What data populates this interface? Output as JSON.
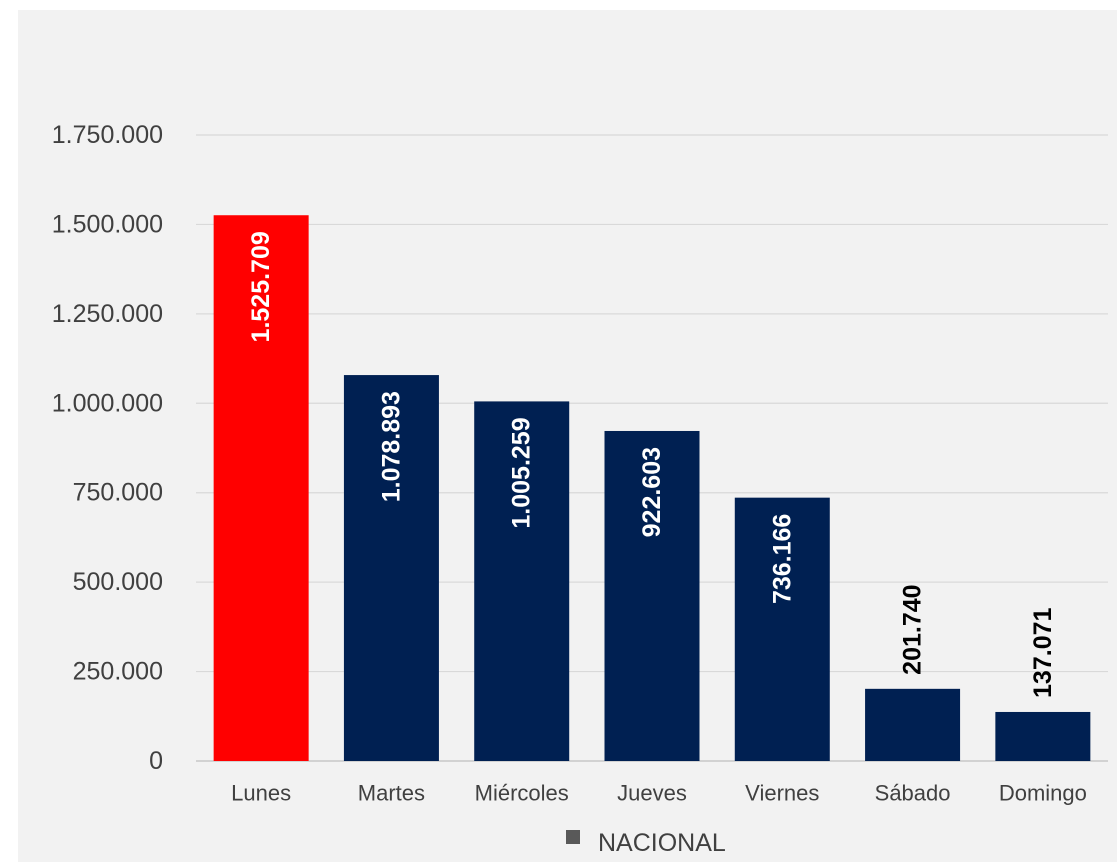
{
  "chart_data": {
    "type": "bar",
    "categories": [
      "Lunes",
      "Martes",
      "Miércoles",
      "Jueves",
      "Viernes",
      "Sábado",
      "Domingo"
    ],
    "values": [
      1525709,
      1078893,
      1005259,
      922603,
      736166,
      201740,
      137071
    ],
    "data_labels": [
      "1.525.709",
      "1.078.893",
      "1.005.259",
      "922.603",
      "736.166",
      "201.740",
      "137.071"
    ],
    "series": [
      {
        "name": "NACIONAL",
        "values": [
          1525709,
          1078893,
          1005259,
          922603,
          736166,
          201740,
          137071
        ]
      }
    ],
    "ylim": [
      0,
      1750000
    ],
    "y_ticks": [
      0,
      250000,
      500000,
      750000,
      1000000,
      1250000,
      1500000,
      1750000
    ],
    "y_tick_labels": [
      "0",
      "250.000",
      "500.000",
      "750.000",
      "1.000.000",
      "1.250.000",
      "1.500.000",
      "1.750.000"
    ],
    "bar_colors": [
      "#ff0000",
      "#002052",
      "#002052",
      "#002052",
      "#002052",
      "#002052",
      "#002052"
    ],
    "label_colors": [
      "#ffffff",
      "#ffffff",
      "#ffffff",
      "#ffffff",
      "#ffffff",
      "#000000",
      "#000000"
    ],
    "gridlines": true,
    "legend_position": "bottom",
    "title": "",
    "xlabel": "",
    "ylabel": ""
  },
  "legend": {
    "label": "NACIONAL",
    "swatch_color": "#595959"
  }
}
